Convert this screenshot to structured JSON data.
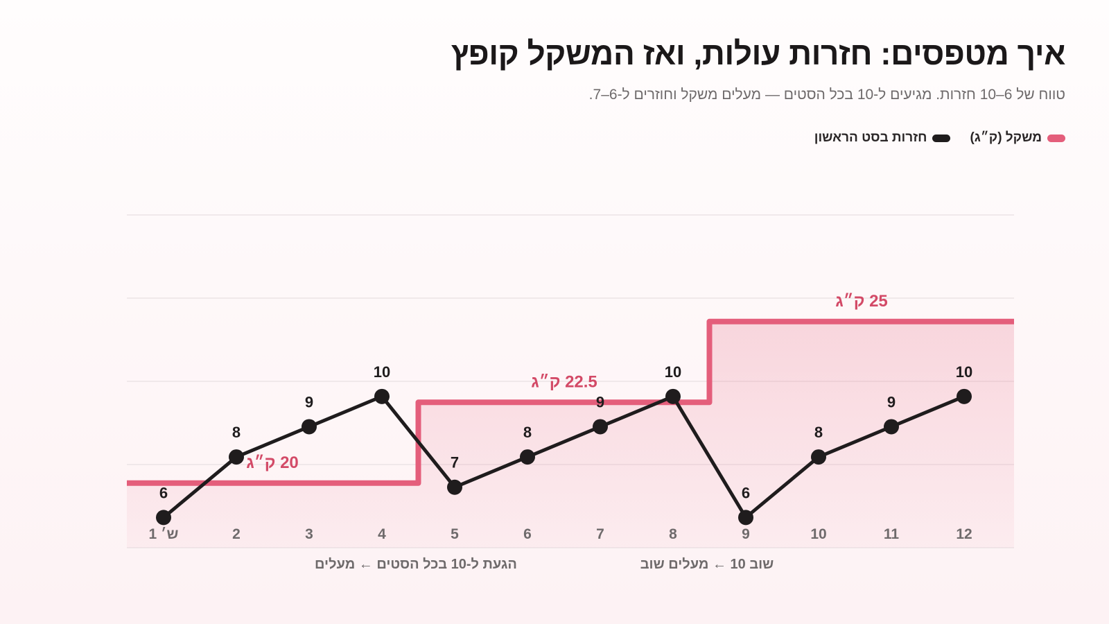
{
  "header": {
    "title": "איך מטפסים: חזרות עולות, ואז המשקל קופץ",
    "subtitle": "טווח של 6–10 חזרות. מגיעים ל-10 בכל הסטים — מעלים משקל וחוזרים ל-6–7."
  },
  "legend": {
    "weight_label": "משקל (ק״ג)",
    "reps_label": "חזרות בסט הראשון"
  },
  "colors": {
    "weight": "#e45e7b",
    "reps": "#1f1c1d",
    "weight_label": "#d34a67",
    "grid": "#ece4e6",
    "tick": "#6e6a6b"
  },
  "chart_data": {
    "type": "line",
    "x": [
      1,
      2,
      3,
      4,
      5,
      6,
      7,
      8,
      9,
      10,
      11,
      12
    ],
    "x_tick_labels": [
      "ש׳ 1",
      "2",
      "3",
      "4",
      "5",
      "6",
      "7",
      "8",
      "9",
      "10",
      "11",
      "12"
    ],
    "series": [
      {
        "name": "חזרות בסט הראשון",
        "values": [
          6,
          8,
          9,
          10,
          7,
          8,
          9,
          10,
          6,
          8,
          9,
          10
        ]
      },
      {
        "name": "משקל (ק״ג)",
        "style": "step",
        "values": [
          20,
          20,
          20,
          20,
          22.5,
          22.5,
          22.5,
          22.5,
          25,
          25,
          25,
          25
        ]
      }
    ],
    "weight_labels": [
      "20 ק״ג",
      "22.5 ק״ג",
      "25 ק״ג"
    ],
    "annotations": [
      "הגעת ל-10 בכל הסטים ← מעלים",
      "שוב 10 ← מעלים שוב"
    ],
    "reps_range": [
      5,
      16
    ],
    "weight_range": [
      18,
      28.3
    ],
    "grid": true,
    "legend_position": "top-right"
  }
}
